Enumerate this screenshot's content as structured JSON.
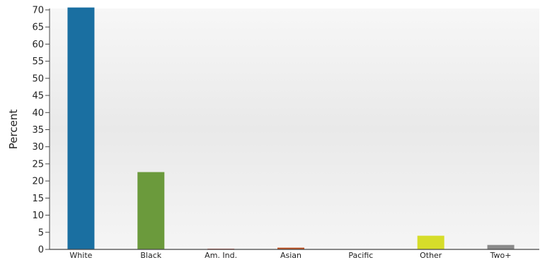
{
  "chart_data": {
    "type": "bar",
    "title": "",
    "xlabel": "",
    "ylabel": "Percent",
    "ylim": [
      0,
      70
    ],
    "yticks": [
      0,
      5,
      10,
      15,
      20,
      25,
      30,
      35,
      40,
      45,
      50,
      55,
      60,
      65,
      70
    ],
    "grid": false,
    "categories": [
      "White",
      "Black",
      "Am. Ind.",
      "Asian",
      "Pacific",
      "Other",
      "Two+"
    ],
    "values": [
      70.7,
      22.6,
      0.2,
      0.5,
      0.1,
      4.0,
      1.3
    ],
    "colors": [
      "#1a6fa1",
      "#6b9a3c",
      "#c0392b",
      "#c0501e",
      "#999999",
      "#d6dd2a",
      "#8a8a8a"
    ],
    "plot_background": [
      "#f7f7f7",
      "#e8e8e8"
    ]
  }
}
